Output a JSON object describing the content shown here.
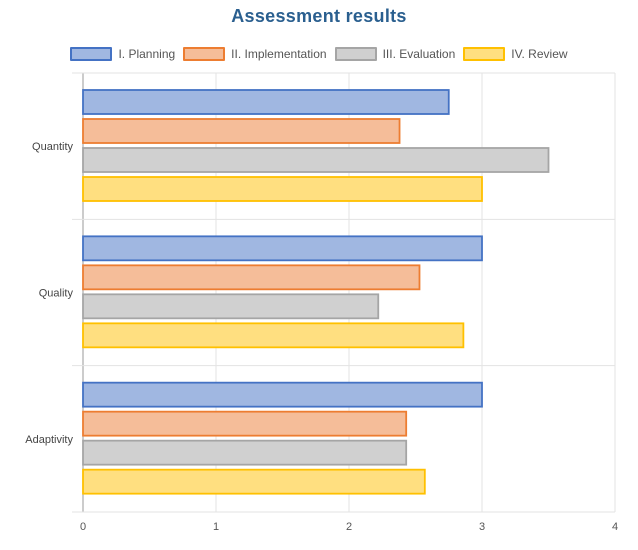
{
  "chart_data": {
    "type": "bar",
    "orientation": "horizontal",
    "title": "Assessment results",
    "categories": [
      "Quantity",
      "Quality",
      "Adaptivity"
    ],
    "xlim": [
      0,
      4
    ],
    "xticks": [
      "0",
      "1",
      "2",
      "3",
      "4"
    ],
    "grid": true,
    "legend_position": "top",
    "series": [
      {
        "name": "I. Planning",
        "values": [
          2.75,
          3.0,
          3.0
        ],
        "fill": "#a0b7e1",
        "stroke": "#4472c4"
      },
      {
        "name": "II. Implementation",
        "values": [
          2.38,
          2.53,
          2.43
        ],
        "fill": "#f5bd99",
        "stroke": "#ed7d31"
      },
      {
        "name": "III. Evaluation",
        "values": [
          3.5,
          2.22,
          2.43
        ],
        "fill": "#d0d0d0",
        "stroke": "#a5a5a5"
      },
      {
        "name": "IV. Review",
        "values": [
          3.0,
          2.86,
          2.57
        ],
        "fill": "#ffdf80",
        "stroke": "#ffc000"
      }
    ]
  }
}
